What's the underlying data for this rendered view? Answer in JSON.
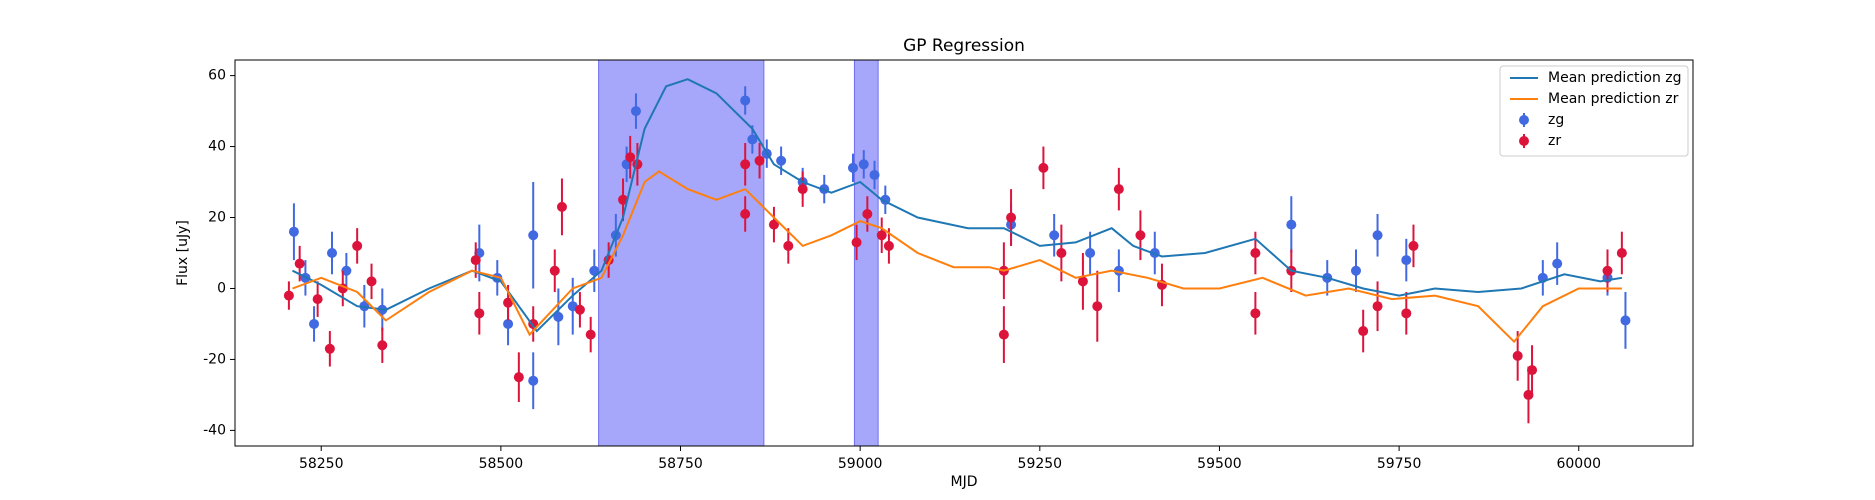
{
  "chart_data": {
    "type": "errorbar",
    "title": "GP Regression",
    "xlabel": "MJD",
    "ylabel": "Flux [uJy]",
    "xlim": [
      58130,
      60159
    ],
    "ylim": [
      -44.4,
      64.4
    ],
    "xticks": [
      58250,
      58500,
      58750,
      59000,
      59250,
      59500,
      59750,
      60000
    ],
    "yticks": [
      -40,
      -20,
      0,
      20,
      40,
      60
    ],
    "legend": "upper right",
    "shaded_regions": {
      "color": "#a6a6fb",
      "edges": [
        [
          58636,
          58866
        ],
        [
          58992,
          59025
        ]
      ]
    },
    "lines": [
      {
        "name": "Mean prediction zg",
        "color": "#1f77b4",
        "x": [
          58210,
          58250,
          58300,
          58340,
          58400,
          58460,
          58500,
          58550,
          58600,
          58640,
          58670,
          58700,
          58730,
          58760,
          58800,
          58850,
          58880,
          58920,
          58960,
          59000,
          59030,
          59080,
          59150,
          59200,
          59250,
          59300,
          59350,
          59380,
          59420,
          59480,
          59550,
          59600,
          59650,
          59700,
          59750,
          59800,
          59860,
          59920,
          59980,
          60030,
          60060
        ],
        "values": [
          5,
          1,
          -5,
          -6,
          0,
          5,
          2,
          -12,
          -2,
          5,
          20,
          45,
          57,
          59,
          55,
          45,
          35,
          30,
          27,
          30,
          25,
          20,
          17,
          17,
          12,
          13,
          17,
          12,
          9,
          10,
          14,
          5,
          3,
          0,
          -2,
          0,
          -1,
          0,
          4,
          2,
          3
        ]
      },
      {
        "name": "Mean prediction zr",
        "color": "#ff7f0e",
        "x": [
          58210,
          58250,
          58300,
          58340,
          58400,
          58460,
          58500,
          58540,
          58600,
          58640,
          58670,
          58700,
          58720,
          58760,
          58800,
          58840,
          58880,
          58920,
          58960,
          59000,
          59030,
          59080,
          59130,
          59180,
          59200,
          59250,
          59300,
          59350,
          59400,
          59450,
          59500,
          59560,
          59620,
          59680,
          59740,
          59800,
          59860,
          59910,
          59950,
          60000,
          60060
        ],
        "values": [
          0,
          3,
          -1,
          -9,
          -1,
          5,
          3,
          -13,
          0,
          3,
          15,
          30,
          33,
          28,
          25,
          28,
          20,
          12,
          15,
          19,
          17,
          10,
          6,
          6,
          5,
          8,
          3,
          5,
          3,
          0,
          0,
          3,
          -2,
          0,
          -3,
          -2,
          -5,
          -15,
          -5,
          0,
          0
        ]
      }
    ],
    "series": [
      {
        "name": "zg",
        "color": "#4169e1",
        "x": [
          58212,
          58228,
          58240,
          58265,
          58285,
          58310,
          58335,
          58470,
          58495,
          58510,
          58545,
          58545,
          58580,
          58600,
          58630,
          58660,
          58675,
          58688,
          58840,
          58850,
          58870,
          58890,
          58920,
          58950,
          58990,
          59005,
          59020,
          59035,
          59210,
          59270,
          59320,
          59360,
          59410,
          59600,
          59650,
          59690,
          59720,
          59760,
          59950,
          59970,
          60040,
          60065
        ],
        "values": [
          16,
          3,
          -10,
          10,
          5,
          -5,
          -6,
          10,
          3,
          -10,
          -26,
          15,
          -8,
          -5,
          5,
          15,
          35,
          50,
          53,
          42,
          38,
          36,
          30,
          28,
          34,
          35,
          32,
          25,
          18,
          15,
          10,
          5,
          10,
          18,
          3,
          5,
          15,
          8,
          3,
          7,
          3,
          -9
        ],
        "errors": [
          8,
          5,
          5,
          6,
          5,
          6,
          6,
          8,
          5,
          6,
          8,
          15,
          8,
          8,
          6,
          6,
          5,
          5,
          4,
          4,
          4,
          4,
          4,
          4,
          4,
          4,
          4,
          4,
          6,
          6,
          6,
          6,
          6,
          8,
          5,
          6,
          6,
          6,
          5,
          6,
          5,
          8
        ]
      },
      {
        "name": "zr",
        "color": "#dc143c",
        "x": [
          58205,
          58220,
          58245,
          58262,
          58280,
          58300,
          58320,
          58335,
          58465,
          58470,
          58510,
          58525,
          58545,
          58575,
          58585,
          58610,
          58625,
          58650,
          58670,
          58680,
          58690,
          58840,
          58840,
          58860,
          58880,
          58900,
          58920,
          58995,
          59010,
          59030,
          59040,
          59200,
          59200,
          59210,
          59255,
          59280,
          59310,
          59330,
          59360,
          59390,
          59420,
          59550,
          59550,
          59600,
          59700,
          59720,
          59760,
          59770,
          59915,
          59930,
          59935,
          60040,
          60060
        ],
        "values": [
          -2,
          7,
          -3,
          -17,
          0,
          12,
          2,
          -16,
          8,
          -7,
          -4,
          -25,
          -10,
          5,
          23,
          -6,
          -13,
          8,
          25,
          37,
          35,
          35,
          21,
          36,
          18,
          12,
          28,
          13,
          21,
          15,
          12,
          5,
          -13,
          20,
          34,
          10,
          2,
          -5,
          28,
          15,
          1,
          10,
          -7,
          5,
          -12,
          -5,
          -7,
          12,
          -19,
          -30,
          -23,
          5,
          10
        ],
        "errors": [
          4,
          5,
          5,
          5,
          5,
          5,
          5,
          5,
          5,
          6,
          5,
          7,
          5,
          6,
          8,
          5,
          5,
          5,
          6,
          6,
          6,
          6,
          5,
          5,
          5,
          5,
          5,
          5,
          5,
          5,
          5,
          8,
          8,
          8,
          6,
          8,
          8,
          10,
          6,
          7,
          6,
          6,
          6,
          6,
          6,
          7,
          6,
          6,
          7,
          8,
          7,
          6,
          6
        ]
      }
    ]
  }
}
